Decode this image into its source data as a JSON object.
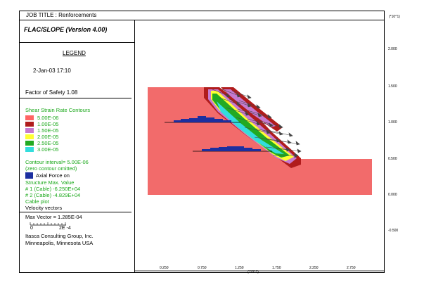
{
  "title_bar": "JOB TITLE : Renforcements",
  "header": "FLAC/SLOPE (Version 4.00)",
  "legend_label": "LEGEND",
  "date": "2-Jan-03  17:10",
  "factor_of_safety": "Factor of Safety  1.08",
  "contours": {
    "title": "Shear Strain Rate Contours",
    "levels": [
      {
        "label": "5.00E-06",
        "color": "#ff6464"
      },
      {
        "label": "1.00E-05",
        "color": "#b01c1c"
      },
      {
        "label": "1.50E-05",
        "color": "#c67ad0"
      },
      {
        "label": "2.00E-05",
        "color": "#ffff33"
      },
      {
        "label": "2.50E-05",
        "color": "#22aa22"
      },
      {
        "label": "3.00E-05",
        "color": "#33dddd"
      }
    ],
    "interval": "Contour interval=  5.00E-06",
    "omitted": "(zero contour omitted)"
  },
  "axial": {
    "title": "Axial Force on",
    "header": "Structure    Max. Value",
    "rows": [
      "# 1 (Cable)    -6.250E+04",
      "# 2 (Cable)    -4.829E+04"
    ]
  },
  "cable_plot": "Cable plot",
  "velocity_vectors": "Velocity vectors",
  "max_vector": "Max Vector =     1.285E-04",
  "scale_0": "0",
  "scale_1": "2E -4",
  "company": "Itasca Consulting Group, Inc.",
  "location": "Minneapolis, Minnesota  USA",
  "y_axis_unit": "(*10^1)",
  "y_ticks": [
    "2.000",
    "1.500",
    "1.000",
    "0.500",
    "0.000",
    "-0.500"
  ],
  "x_axis_unit": "(*10^1)",
  "x_ticks": [
    "0.250",
    "0.750",
    "1.250",
    "1.750",
    "2.250",
    "2.750"
  ],
  "colors": {
    "base": "#f26b6b",
    "axial_bar": "#1c2fa0",
    "vector": "#444444"
  }
}
